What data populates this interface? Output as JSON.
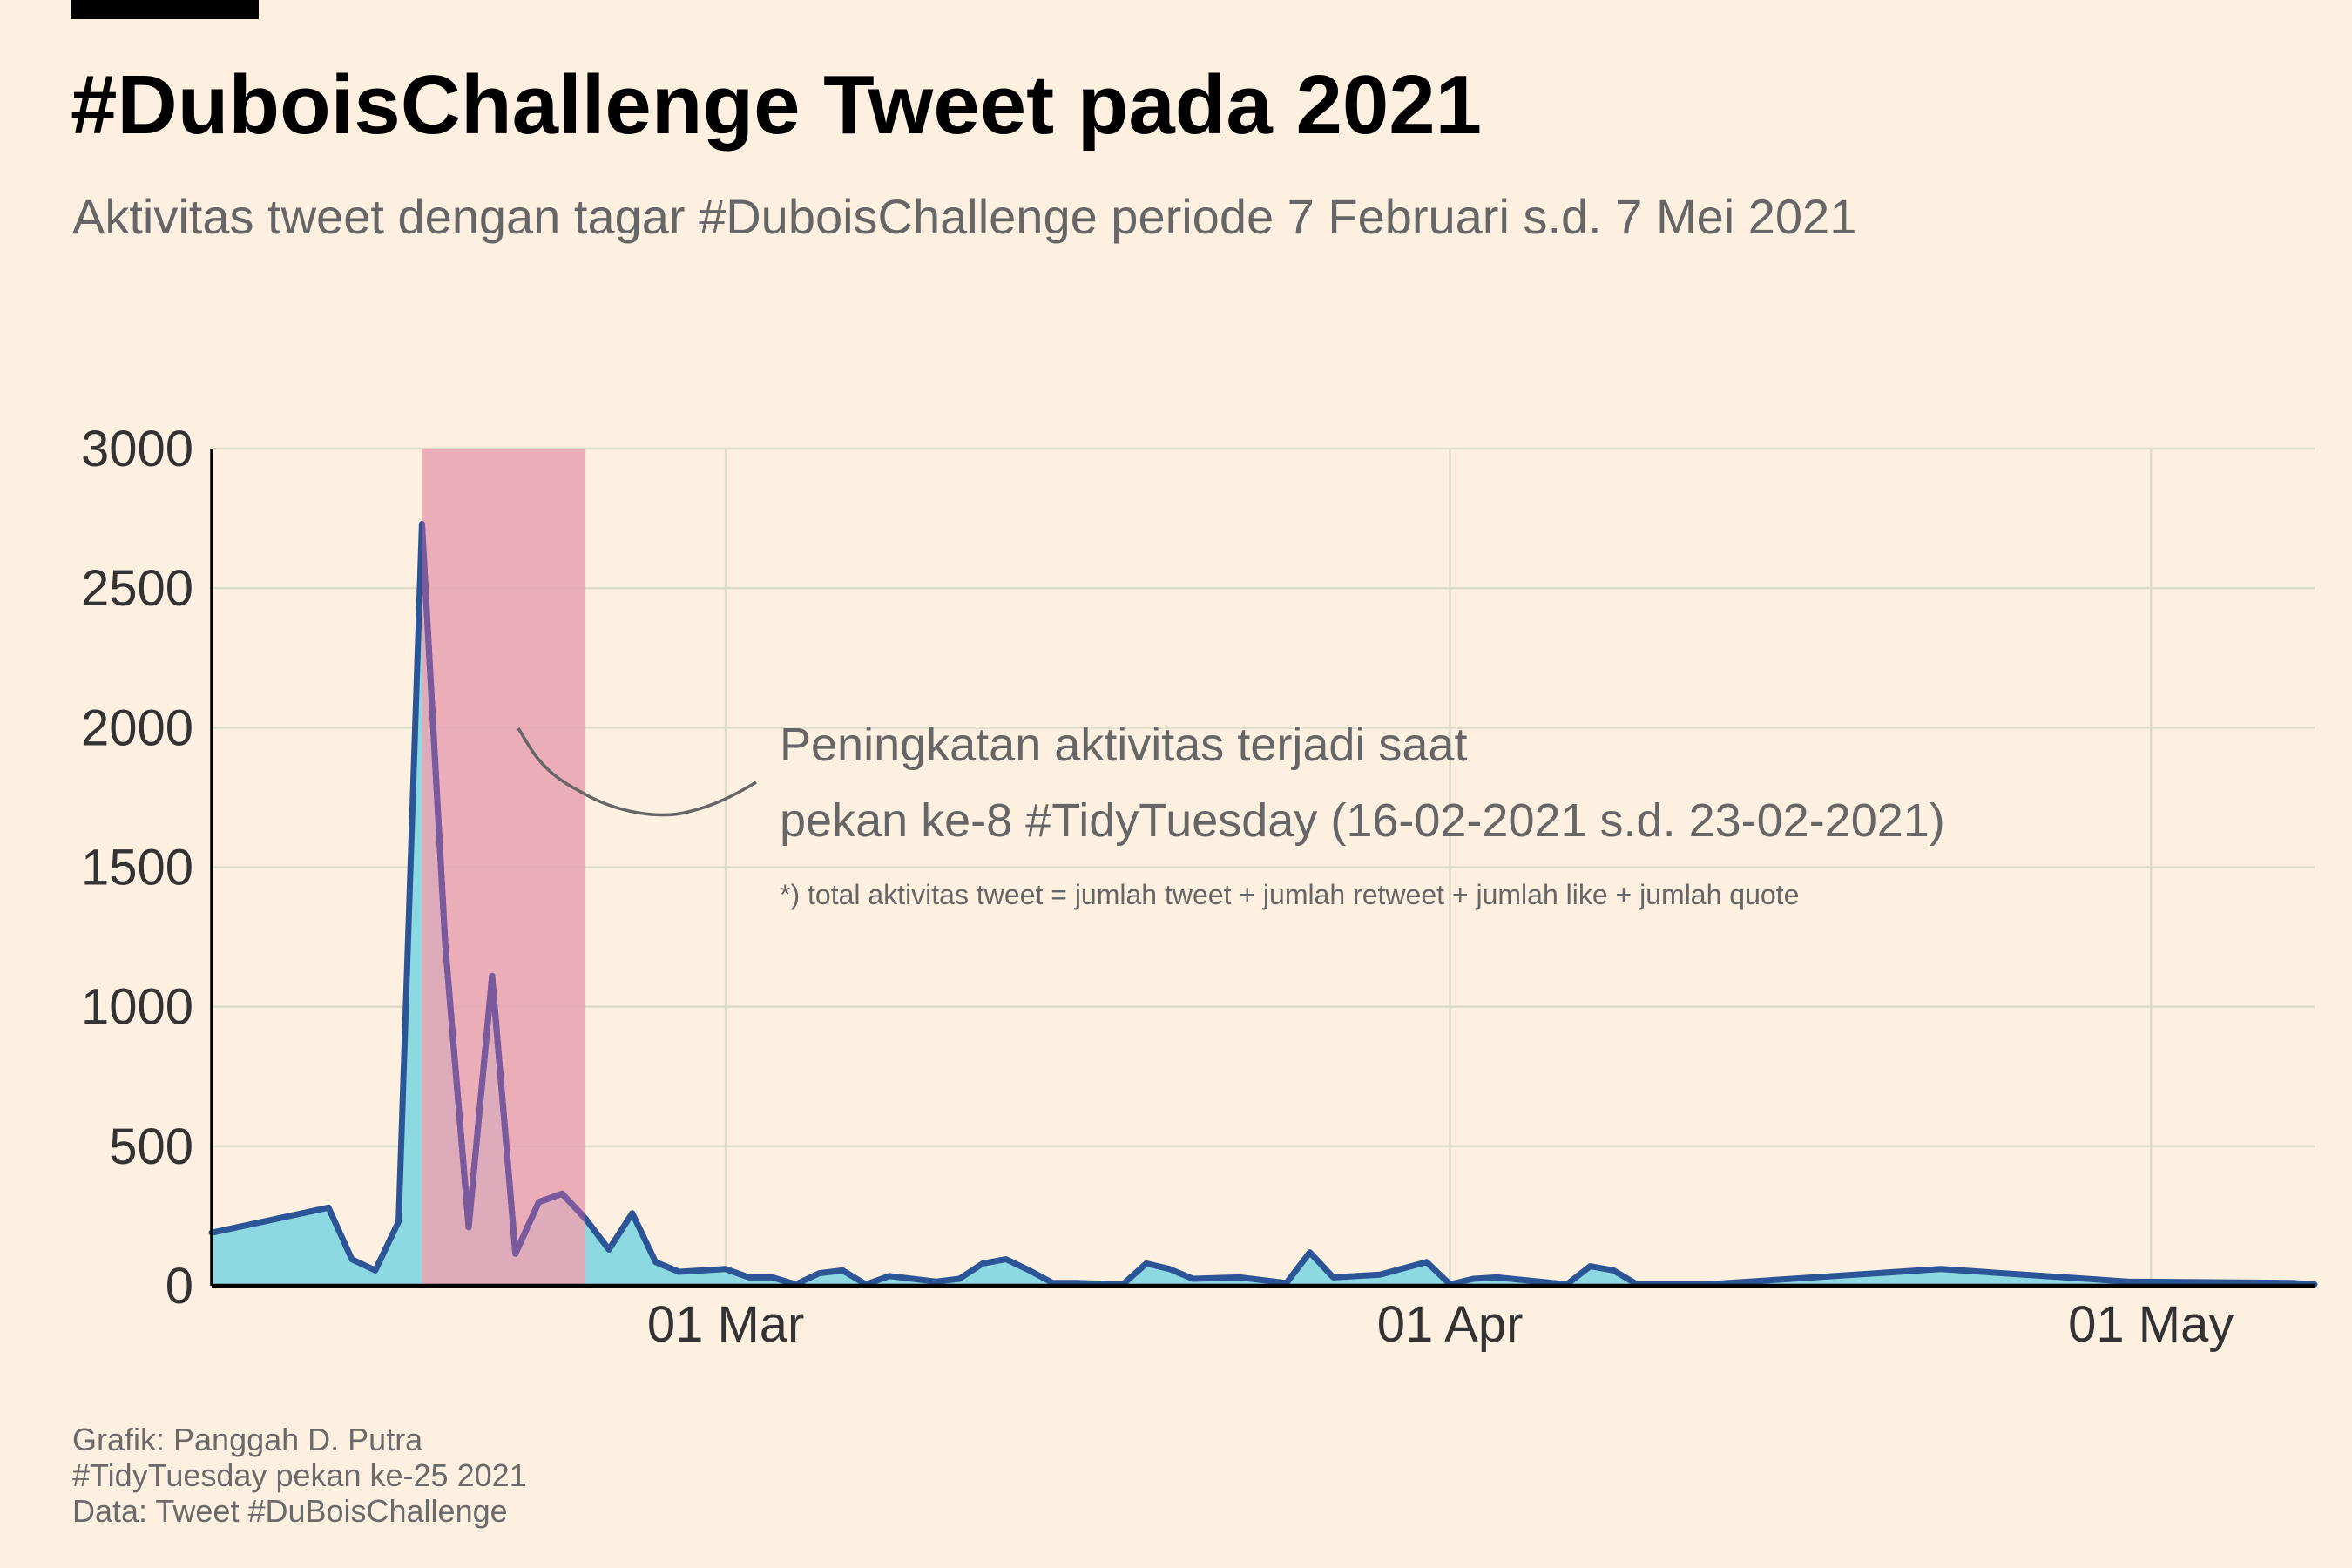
{
  "title": "#DuboisChallenge Tweet pada 2021",
  "subtitle": "Aktivitas tweet dengan tagar #DuboisChallenge periode 7 Februari s.d. 7 Mei 2021",
  "caption": [
    "Grafik: Panggah D. Putra",
    "#TidyTuesday pekan ke-25 2021",
    "Data: Tweet #DuBoisChallenge"
  ],
  "annotation": {
    "line1": "Peningkatan aktivitas terjadi saat",
    "line2": "pekan ke-8 #TidyTuesday (16-02-2021 s.d. 23-02-2021)",
    "note": "*) total aktivitas tweet = jumlah tweet + jumlah retweet + jumlah like + jumlah quote"
  },
  "colors": {
    "background": "#fdf0e0",
    "line": "#2b5597",
    "area_fill": "#8dd9e1",
    "highlight": "#e8a4b3",
    "grid": "#dcdcc8"
  },
  "chart_data": {
    "type": "area",
    "title": "#DuboisChallenge Tweet pada 2021",
    "xlabel": "",
    "ylabel": "",
    "x_domain": [
      "2021-02-07",
      "2021-05-08"
    ],
    "ylim": [
      0,
      3000
    ],
    "y_ticks": [
      0,
      500,
      1000,
      1500,
      2000,
      2500,
      3000
    ],
    "x_ticks": [
      {
        "date": "2021-03-01",
        "label": "01 Mar"
      },
      {
        "date": "2021-04-01",
        "label": "01 Apr"
      },
      {
        "date": "2021-05-01",
        "label": "01 May"
      }
    ],
    "grid": true,
    "highlight_range": [
      "2021-02-16",
      "2021-02-23"
    ],
    "series": [
      {
        "points": [
          [
            "2021-02-07",
            190
          ],
          [
            "2021-02-12",
            280
          ],
          [
            "2021-02-13",
            95
          ],
          [
            "2021-02-14",
            55
          ],
          [
            "2021-02-15",
            230
          ],
          [
            "2021-02-16",
            2730
          ],
          [
            "2021-02-17",
            1220
          ],
          [
            "2021-02-18",
            210
          ],
          [
            "2021-02-19",
            1110
          ],
          [
            "2021-02-20",
            115
          ],
          [
            "2021-02-21",
            300
          ],
          [
            "2021-02-22",
            330
          ],
          [
            "2021-02-23",
            240
          ],
          [
            "2021-02-24",
            130
          ],
          [
            "2021-02-25",
            260
          ],
          [
            "2021-02-26",
            85
          ],
          [
            "2021-02-27",
            50
          ],
          [
            "2021-03-01",
            60
          ],
          [
            "2021-03-02",
            30
          ],
          [
            "2021-03-03",
            30
          ],
          [
            "2021-03-04",
            5
          ],
          [
            "2021-03-05",
            45
          ],
          [
            "2021-03-06",
            55
          ],
          [
            "2021-03-07",
            5
          ],
          [
            "2021-03-08",
            35
          ],
          [
            "2021-03-10",
            15
          ],
          [
            "2021-03-11",
            25
          ],
          [
            "2021-03-12",
            80
          ],
          [
            "2021-03-13",
            95
          ],
          [
            "2021-03-14",
            55
          ],
          [
            "2021-03-15",
            10
          ],
          [
            "2021-03-16",
            10
          ],
          [
            "2021-03-18",
            5
          ],
          [
            "2021-03-19",
            80
          ],
          [
            "2021-03-20",
            60
          ],
          [
            "2021-03-21",
            25
          ],
          [
            "2021-03-23",
            30
          ],
          [
            "2021-03-25",
            10
          ],
          [
            "2021-03-26",
            120
          ],
          [
            "2021-03-27",
            30
          ],
          [
            "2021-03-29",
            40
          ],
          [
            "2021-03-31",
            85
          ],
          [
            "2021-04-01",
            5
          ],
          [
            "2021-04-02",
            25
          ],
          [
            "2021-04-03",
            30
          ],
          [
            "2021-04-06",
            5
          ],
          [
            "2021-04-07",
            70
          ],
          [
            "2021-04-08",
            55
          ],
          [
            "2021-04-09",
            5
          ],
          [
            "2021-04-12",
            5
          ],
          [
            "2021-04-22",
            60
          ],
          [
            "2021-04-30",
            15
          ],
          [
            "2021-05-07",
            10
          ],
          [
            "2021-05-08",
            5
          ]
        ]
      }
    ]
  }
}
